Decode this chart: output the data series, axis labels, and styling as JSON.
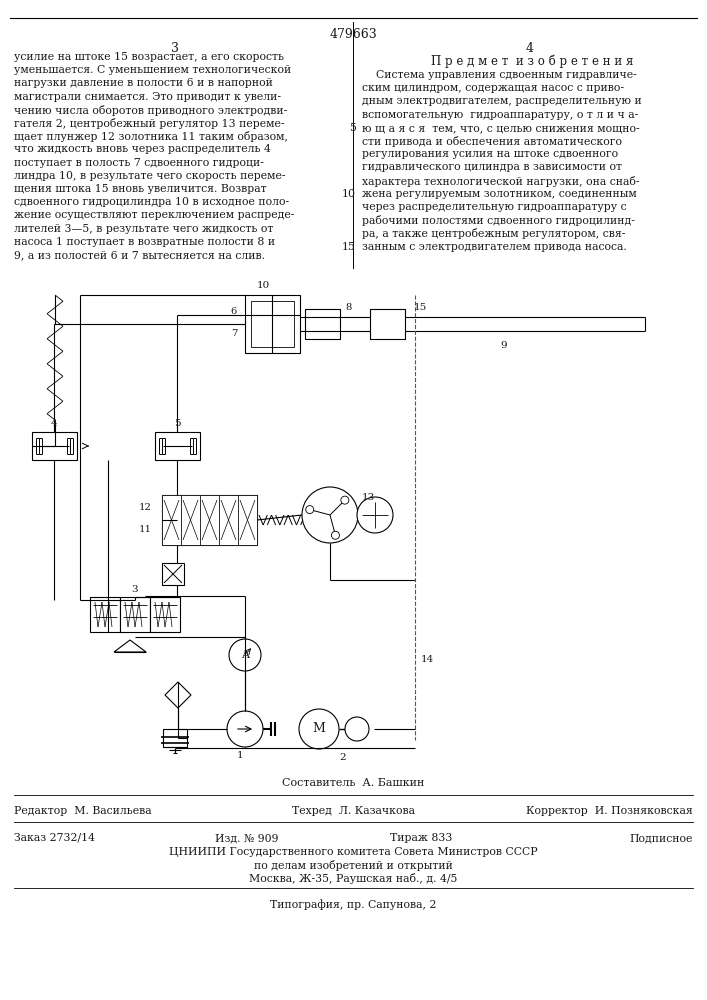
{
  "patent_number": "479663",
  "page_left": "3",
  "page_right": "4",
  "left_text_lines": [
    "усилие на штоке 15 возрастает, а его скорость",
    "уменьшается. С уменьшением технологической",
    "нагрузки давление в полости 6 и в напорной",
    "магистрали снимается. Это приводит к увели-",
    "чению числа оборотов приводного электродви-",
    "гателя 2, центробежный регулятор 13 переме-",
    "щает плунжер 12 золотника 11 таким образом,",
    "что жидкость вновь через распределитель 4",
    "поступает в полость 7 сдвоенного гидроци-",
    "линдра 10, в результате чего скорость переме-",
    "щения штока 15 вновь увеличится. Возврат",
    "сдвоенного гидроцилиндра 10 в исходное поло-",
    "жение осуществляют переключением распреде-",
    "лителей 3—5, в результате чего жидкость от",
    "насоса 1 поступает в возвратные полости 8 и",
    "9, а из полостей 6 и 7 вытесняется на слив."
  ],
  "right_title": "П р е д м е т  и з о б р е т е н и я",
  "right_text_lines": [
    "    Система управления сдвоенным гидравличе-",
    "ским цилиндром, содержащая насос с приво-",
    "дным электродвигателем, распределительную и",
    "вспомогательную  гидроаппаратуру, о т л и ч а-",
    "ю щ а я с я  тем, что, с целью снижения мощно-",
    "сти привода и обеспечения автоматического",
    "регулирования усилия на штоке сдвоенного",
    "гидравлического цилиндра в зависимости от",
    "характера технологической нагрузки, она снаб-",
    "жена регулируемым золотником, соединенным",
    "через распределительную гидроаппаратуру с",
    "рабочими полостями сдвоенного гидроцилинд-",
    "ра, а также центробежным регулятором, свя-",
    "занным с электродвигателем привода насоса."
  ],
  "line_number_positions": {
    "4": 5,
    "9": 10,
    "13": 15
  },
  "composer_line": "Составитель  А. Башкин",
  "editor_label": "Редактор",
  "editor_name": "М. Васильева",
  "techred_label": "Техред",
  "techred_name": "Л. Казачкова",
  "corrector_label": "Корректор",
  "corrector_name": "И. Позняковская",
  "order_text": "Заказ 2732/14",
  "izd_text": "Изд. № 909",
  "tirazh_text": "Тираж 833",
  "podpisnoe_text": "Подписное",
  "tsniip_text": "ЦНИИПИ Государственного комитета Совета Министров СССР",
  "po_delam_text": "по делам изобретений и открытий",
  "moscow_text": "Москва, Ж-35, Раушская наб., д. 4/5",
  "tipografia_text": "Типография, пр. Сапунова, 2",
  "bg_color": "#ffffff",
  "text_color": "#1a1a1a",
  "line_color": "#000000"
}
